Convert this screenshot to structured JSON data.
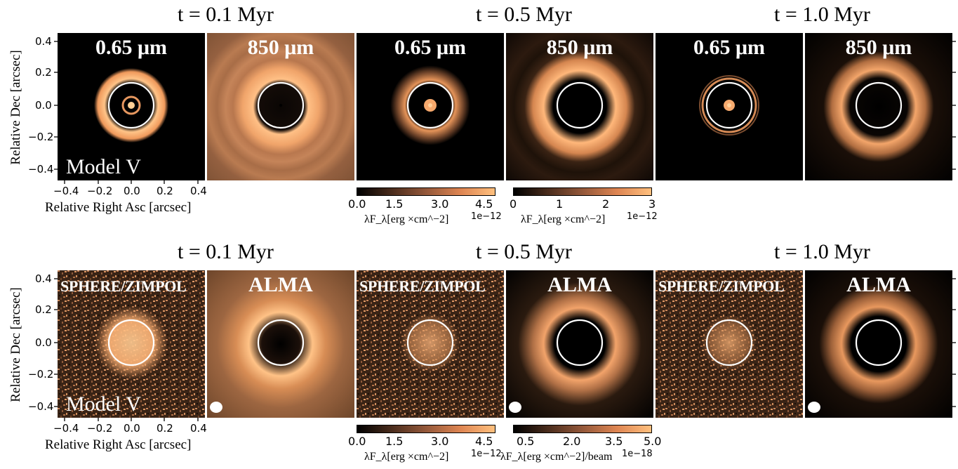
{
  "row1": {
    "times": [
      "t = 0.1 Myr",
      "t = 0.5 Myr",
      "t = 1.0 Myr"
    ],
    "labels": [
      "0.65 μm",
      "850 μm",
      "0.65 μm",
      "850 μm",
      "0.65 μm",
      "850 μm"
    ],
    "model": "Model V",
    "colorbars": [
      {
        "ticks": [
          "0.0",
          "1.5",
          "3.0",
          "4.5"
        ],
        "exponent": "1e−12",
        "label": "λF_λ[erg ×cm^−2]"
      },
      {
        "ticks": [
          "0",
          "1",
          "2",
          "3"
        ],
        "exponent": "1e−12",
        "label": "λF_λ[erg ×cm^−2]"
      }
    ]
  },
  "row2": {
    "times": [
      "t = 0.1 Myr",
      "t = 0.5 Myr",
      "t = 1.0 Myr"
    ],
    "labels": [
      "SPHERE/ZIMPOL",
      "ALMA",
      "SPHERE/ZIMPOL",
      "ALMA",
      "SPHERE/ZIMPOL",
      "ALMA"
    ],
    "model": "Model V",
    "colorbars": [
      {
        "ticks": [
          "0.0",
          "1.5",
          "3.0",
          "4.5"
        ],
        "exponent": "1e−12",
        "label": "λF_λ[erg ×cm^−2]"
      },
      {
        "ticks": [
          "0.5",
          "2.0",
          "3.5",
          "5.0"
        ],
        "exponent": "1e−18",
        "label": "λF_λ[erg ×cm^−2]/beam"
      }
    ]
  },
  "axes": {
    "ylabel": "Relative Dec [arcsec]",
    "xlabel": "Relative Right Asc [arcsec]",
    "yticks": [
      "0.4",
      "0.2",
      "0.0",
      "−0.2",
      "−0.4"
    ],
    "xticks": [
      "−0.4",
      "−0.2",
      "0.0",
      "0.2",
      "0.4"
    ]
  },
  "colors": {
    "colormap": "copper",
    "ring_marker": "#ffffff"
  }
}
